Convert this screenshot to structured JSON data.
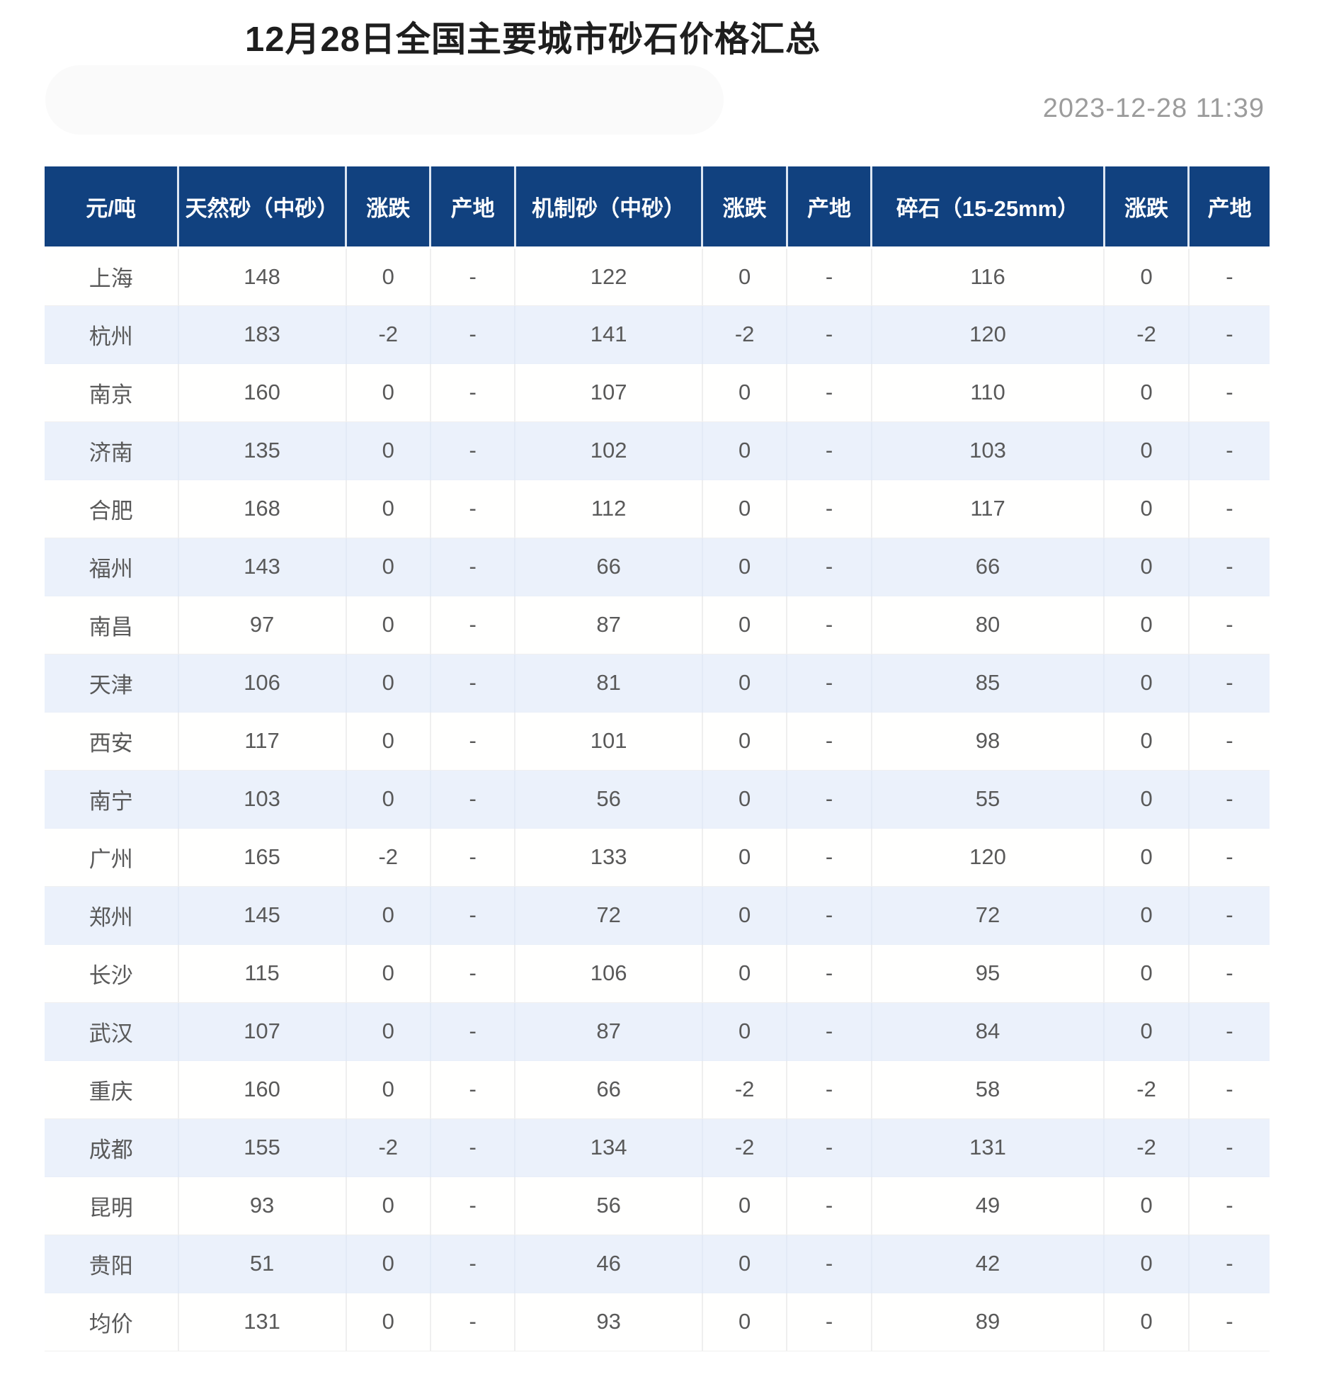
{
  "page": {
    "title": "12月28日全国主要城市砂石价格汇总",
    "timestamp": "2023-12-28 11:39"
  },
  "colors": {
    "header_bg": "#11417f",
    "header_text": "#ffffff",
    "stripe_row_bg": "#ebf1fb",
    "cell_text": "#595959",
    "timestamp_text": "#9c9c9c"
  },
  "table": {
    "columns": [
      "元/吨",
      "天然砂（中砂）",
      "涨跌",
      "产地",
      "机制砂（中砂）",
      "涨跌",
      "产地",
      "碎石（15-25mm）",
      "涨跌",
      "产地"
    ],
    "rows": [
      [
        "上海",
        "148",
        "0",
        "-",
        "122",
        "0",
        "-",
        "116",
        "0",
        "-"
      ],
      [
        "杭州",
        "183",
        "-2",
        "-",
        "141",
        "-2",
        "-",
        "120",
        "-2",
        "-"
      ],
      [
        "南京",
        "160",
        "0",
        "-",
        "107",
        "0",
        "-",
        "110",
        "0",
        "-"
      ],
      [
        "济南",
        "135",
        "0",
        "-",
        "102",
        "0",
        "-",
        "103",
        "0",
        "-"
      ],
      [
        "合肥",
        "168",
        "0",
        "-",
        "112",
        "0",
        "-",
        "117",
        "0",
        "-"
      ],
      [
        "福州",
        "143",
        "0",
        "-",
        "66",
        "0",
        "-",
        "66",
        "0",
        "-"
      ],
      [
        "南昌",
        "97",
        "0",
        "-",
        "87",
        "0",
        "-",
        "80",
        "0",
        "-"
      ],
      [
        "天津",
        "106",
        "0",
        "-",
        "81",
        "0",
        "-",
        "85",
        "0",
        "-"
      ],
      [
        "西安",
        "117",
        "0",
        "-",
        "101",
        "0",
        "-",
        "98",
        "0",
        "-"
      ],
      [
        "南宁",
        "103",
        "0",
        "-",
        "56",
        "0",
        "-",
        "55",
        "0",
        "-"
      ],
      [
        "广州",
        "165",
        "-2",
        "-",
        "133",
        "0",
        "-",
        "120",
        "0",
        "-"
      ],
      [
        "郑州",
        "145",
        "0",
        "-",
        "72",
        "0",
        "-",
        "72",
        "0",
        "-"
      ],
      [
        "长沙",
        "115",
        "0",
        "-",
        "106",
        "0",
        "-",
        "95",
        "0",
        "-"
      ],
      [
        "武汉",
        "107",
        "0",
        "-",
        "87",
        "0",
        "-",
        "84",
        "0",
        "-"
      ],
      [
        "重庆",
        "160",
        "0",
        "-",
        "66",
        "-2",
        "-",
        "58",
        "-2",
        "-"
      ],
      [
        "成都",
        "155",
        "-2",
        "-",
        "134",
        "-2",
        "-",
        "131",
        "-2",
        "-"
      ],
      [
        "昆明",
        "93",
        "0",
        "-",
        "56",
        "0",
        "-",
        "49",
        "0",
        "-"
      ],
      [
        "贵阳",
        "51",
        "0",
        "-",
        "46",
        "0",
        "-",
        "42",
        "0",
        "-"
      ],
      [
        "均价",
        "131",
        "0",
        "-",
        "93",
        "0",
        "-",
        "89",
        "0",
        "-"
      ]
    ]
  }
}
